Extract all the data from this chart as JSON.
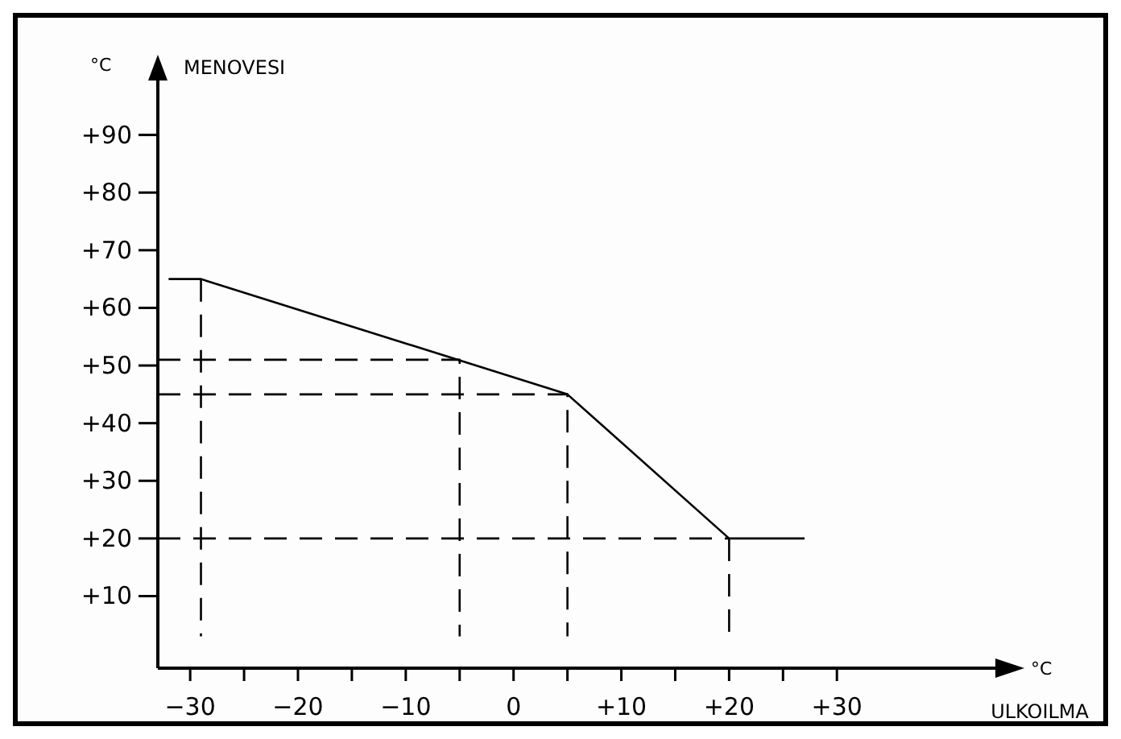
{
  "chart_data": {
    "type": "line",
    "xlabel": "ULKOILMA",
    "ylabel": "MENOVESI",
    "annotations": [
      "°C",
      "°C"
    ],
    "xlim": [
      -33,
      45
    ],
    "ylim": [
      -2.5,
      100
    ],
    "xticks": [
      {
        "value": -30,
        "label": "−30"
      },
      {
        "value": -25,
        "label": null
      },
      {
        "value": -20,
        "label": "−20"
      },
      {
        "value": -15,
        "label": null
      },
      {
        "value": -10,
        "label": "−10"
      },
      {
        "value": -5,
        "label": null
      },
      0,
      {
        "value": 5,
        "label": null
      },
      {
        "value": 10,
        "label": "+10"
      },
      {
        "value": 15,
        "label": null
      },
      {
        "value": 20,
        "label": "+20"
      },
      {
        "value": 25,
        "label": null
      },
      {
        "value": 30,
        "label": "+30"
      }
    ],
    "yticks": [
      {
        "value": 10,
        "label": "+10"
      },
      {
        "value": 20,
        "label": "+20"
      },
      {
        "value": 30,
        "label": "+30"
      },
      {
        "value": 40,
        "label": "+40"
      },
      {
        "value": 50,
        "label": "+50"
      },
      {
        "value": 60,
        "label": "+60"
      },
      {
        "value": 70,
        "label": "+70"
      },
      {
        "value": 80,
        "label": "+80"
      },
      {
        "value": 90,
        "label": "+90"
      }
    ],
    "marker": "none",
    "grid": false,
    "series": [
      {
        "color": "#000000",
        "line_style": "solid",
        "x": [
          -32,
          -29,
          5,
          20,
          27
        ],
        "values": [
          65,
          65,
          45,
          20,
          20
        ]
      },
      {
        "color": "#000000",
        "line_style": "dashed",
        "x": [
          -29,
          -29
        ],
        "values": [
          65,
          3
        ]
      },
      {
        "color": "#000000",
        "line_style": "dashed",
        "x": [
          -33,
          -5,
          -5
        ],
        "values": [
          51,
          51,
          3
        ]
      },
      {
        "color": "#000000",
        "line_style": "dashed",
        "x": [
          -33,
          5,
          5
        ],
        "values": [
          45,
          45,
          3
        ]
      },
      {
        "color": "#000000",
        "line_style": "dashed",
        "x": [
          -33,
          20
        ],
        "values": [
          20,
          20
        ]
      },
      {
        "color": "#000000",
        "line_style": "dashed",
        "x": [
          20,
          20
        ],
        "values": [
          20,
          3
        ]
      }
    ]
  }
}
